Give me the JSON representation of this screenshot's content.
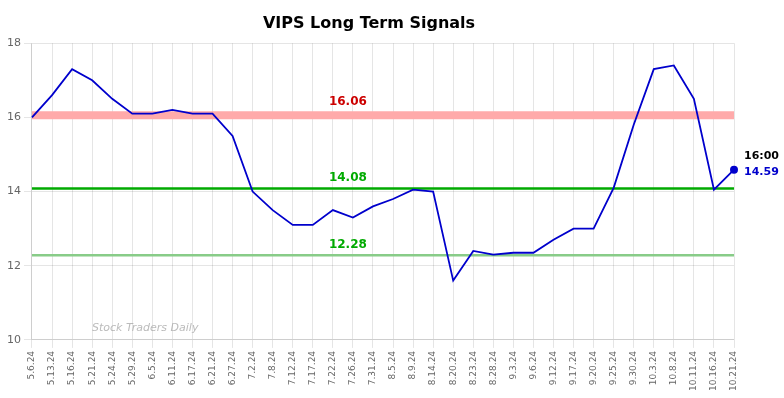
{
  "chart_data": {
    "type": "line",
    "title": "VIPS Long Term Signals",
    "categories": [
      "5.6.24",
      "5.13.24",
      "5.16.24",
      "5.21.24",
      "5.24.24",
      "5.29.24",
      "6.5.24",
      "6.11.24",
      "6.17.24",
      "6.21.24",
      "6.27.24",
      "7.2.24",
      "7.8.24",
      "7.12.24",
      "7.17.24",
      "7.22.24",
      "7.26.24",
      "7.31.24",
      "8.5.24",
      "8.9.24",
      "8.14.24",
      "8.20.24",
      "8.23.24",
      "8.28.24",
      "9.3.24",
      "9.6.24",
      "9.12.24",
      "9.17.24",
      "9.20.24",
      "9.25.24",
      "9.30.24",
      "10.3.24",
      "10.8.24",
      "10.11.24",
      "10.16.24",
      "10.21.24"
    ],
    "values": [
      16.0,
      16.6,
      17.3,
      17.0,
      16.5,
      16.1,
      16.1,
      16.2,
      16.1,
      16.1,
      15.5,
      14.0,
      13.5,
      13.1,
      13.1,
      13.5,
      13.3,
      13.6,
      13.8,
      14.05,
      14.0,
      11.6,
      12.4,
      12.3,
      12.35,
      12.35,
      12.7,
      13.0,
      13.0,
      14.1,
      15.8,
      17.3,
      17.4,
      16.5,
      14.05,
      14.59
    ],
    "color": "#0000cc",
    "ylim": [
      10,
      18
    ],
    "yticks": [
      10,
      12,
      14,
      16,
      18
    ],
    "grid": true,
    "hlines": [
      {
        "value": 16.06,
        "label": "16.06",
        "color": "#ffaaaa",
        "label_color": "#cc0000"
      },
      {
        "value": 14.08,
        "label": "14.08",
        "color": "#00aa00",
        "label_color": "#00aa00"
      },
      {
        "value": 12.28,
        "label": "12.28",
        "color": "#88cc88",
        "label_color": "#00aa00"
      }
    ],
    "last_point": {
      "value": 14.59,
      "label": "14.59",
      "time_label": "16:00"
    },
    "watermark": "Stock Traders Daily"
  }
}
